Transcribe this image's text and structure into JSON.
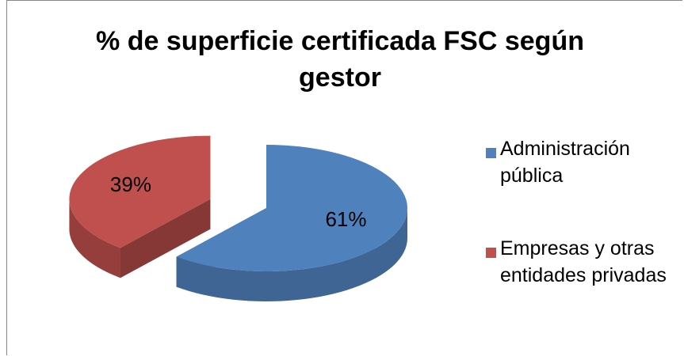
{
  "chart_data": {
    "type": "pie3d",
    "title": "% de superficie certificada FSC según gestor",
    "categories": [
      "Administración pública",
      "Empresas y otras entidades privadas"
    ],
    "values": [
      61,
      39
    ],
    "value_labels": [
      "61%",
      "39%"
    ],
    "colors": [
      "#4f81bd",
      "#c0504d"
    ],
    "legend": "right"
  }
}
